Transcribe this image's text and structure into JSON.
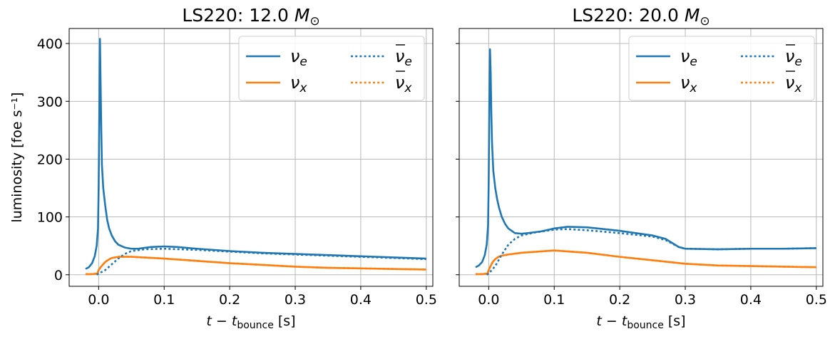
{
  "chart_data": [
    {
      "type": "line",
      "title": "LS220: 12.0 M⊙",
      "title_parts": {
        "prefix": "LS220: 12.0 ",
        "symbol": "M",
        "subscript": "⊙"
      },
      "xlabel_parts": {
        "pre": "t − t",
        "sub": "bounce",
        "post": " [s]"
      },
      "ylabel": "luminosity [foe s⁻¹]",
      "xlim": [
        -0.045,
        0.51
      ],
      "ylim": [
        -20,
        426
      ],
      "xticks": [
        0.0,
        0.1,
        0.2,
        0.3,
        0.4,
        0.5
      ],
      "xtick_labels": [
        "0.0",
        "0.1",
        "0.2",
        "0.3",
        "0.4",
        "0.5"
      ],
      "yticks": [
        0,
        100,
        200,
        300,
        400
      ],
      "ytick_labels": [
        "0",
        "100",
        "200",
        "300",
        "400"
      ],
      "grid": true,
      "legend_position": "top-right",
      "series": [
        {
          "name": "ν",
          "sub": "e",
          "bar": false,
          "color": "#1f77b4",
          "dash": "solid",
          "x": [
            -0.02,
            -0.015,
            -0.01,
            -0.006,
            -0.003,
            -0.001,
            0.0,
            0.001,
            0.002,
            0.003,
            0.004,
            0.005,
            0.007,
            0.01,
            0.013,
            0.016,
            0.02,
            0.025,
            0.03,
            0.04,
            0.05,
            0.06,
            0.08,
            0.1,
            0.12,
            0.15,
            0.2,
            0.25,
            0.3,
            0.35,
            0.4,
            0.45,
            0.5
          ],
          "y": [
            10,
            13,
            20,
            32,
            50,
            80,
            150,
            280,
            408,
            330,
            250,
            190,
            150,
            120,
            95,
            80,
            68,
            58,
            52,
            47,
            45,
            45,
            48,
            49,
            48,
            45,
            41,
            38,
            36,
            34,
            32,
            30,
            28
          ]
        },
        {
          "name": "ν",
          "sub": "x",
          "bar": false,
          "color": "#ff7f0e",
          "dash": "solid",
          "x": [
            -0.02,
            -0.01,
            -0.002,
            0.0,
            0.003,
            0.006,
            0.01,
            0.015,
            0.02,
            0.03,
            0.05,
            0.1,
            0.15,
            0.2,
            0.25,
            0.3,
            0.35,
            0.4,
            0.45,
            0.5
          ],
          "y": [
            1,
            1,
            2,
            8,
            13,
            17,
            22,
            26,
            29,
            31,
            31,
            28,
            24,
            20,
            17,
            14,
            12,
            11,
            10,
            9
          ]
        },
        {
          "name": "ν",
          "sub": "e",
          "bar": true,
          "color": "#1f77b4",
          "dash": "dotted",
          "x": [
            -0.003,
            0.0,
            0.01,
            0.02,
            0.03,
            0.04,
            0.05,
            0.07,
            0.1,
            0.15,
            0.2,
            0.25,
            0.3,
            0.35,
            0.4,
            0.45,
            0.5
          ],
          "y": [
            0,
            2,
            8,
            18,
            28,
            36,
            41,
            44,
            45,
            43,
            40,
            37,
            35,
            33,
            31,
            29,
            27
          ]
        },
        {
          "name": "ν",
          "sub": "x",
          "bar": true,
          "color": "#ff7f0e",
          "dash": "dotted",
          "x": [
            -0.02,
            -0.01,
            -0.002,
            0.0,
            0.003,
            0.006,
            0.01,
            0.015,
            0.02,
            0.03,
            0.05,
            0.1,
            0.15,
            0.2,
            0.25,
            0.3,
            0.35,
            0.4,
            0.45,
            0.5
          ],
          "y": [
            1,
            1,
            2,
            8,
            13,
            17,
            22,
            26,
            29,
            31,
            31,
            28,
            24,
            20,
            17,
            14,
            12,
            11,
            10,
            9
          ]
        }
      ]
    },
    {
      "type": "line",
      "title": "LS220: 20.0 M⊙",
      "title_parts": {
        "prefix": "LS220: 20.0 ",
        "symbol": "M",
        "subscript": "⊙"
      },
      "xlabel_parts": {
        "pre": "t − t",
        "sub": "bounce",
        "post": " [s]"
      },
      "ylabel": "",
      "xlim": [
        -0.045,
        0.51
      ],
      "ylim": [
        -20,
        426
      ],
      "xticks": [
        0.0,
        0.1,
        0.2,
        0.3,
        0.4,
        0.5
      ],
      "xtick_labels": [
        "0.0",
        "0.1",
        "0.2",
        "0.3",
        "0.4",
        "0.5"
      ],
      "yticks": [
        0,
        100,
        200,
        300,
        400
      ],
      "ytick_labels": [],
      "grid": true,
      "legend_position": "top-right",
      "series": [
        {
          "name": "ν",
          "sub": "e",
          "bar": false,
          "color": "#1f77b4",
          "dash": "solid",
          "x": [
            -0.02,
            -0.015,
            -0.01,
            -0.006,
            -0.003,
            -0.001,
            0.0,
            0.001,
            0.002,
            0.003,
            0.004,
            0.005,
            0.007,
            0.01,
            0.013,
            0.016,
            0.02,
            0.025,
            0.03,
            0.04,
            0.05,
            0.06,
            0.08,
            0.1,
            0.12,
            0.15,
            0.2,
            0.25,
            0.27,
            0.28,
            0.29,
            0.3,
            0.35,
            0.4,
            0.45,
            0.5
          ],
          "y": [
            13,
            16,
            22,
            34,
            52,
            85,
            160,
            300,
            390,
            350,
            280,
            230,
            180,
            150,
            130,
            115,
            100,
            88,
            80,
            72,
            71,
            72,
            75,
            80,
            83,
            82,
            76,
            68,
            62,
            55,
            48,
            45,
            44,
            45,
            45,
            46
          ]
        },
        {
          "name": "ν",
          "sub": "x",
          "bar": false,
          "color": "#ff7f0e",
          "dash": "solid",
          "x": [
            -0.02,
            -0.01,
            -0.002,
            0.0,
            0.003,
            0.006,
            0.01,
            0.015,
            0.02,
            0.03,
            0.05,
            0.1,
            0.15,
            0.2,
            0.25,
            0.3,
            0.35,
            0.4,
            0.45,
            0.5
          ],
          "y": [
            1,
            1,
            2,
            8,
            15,
            22,
            27,
            31,
            33,
            35,
            38,
            42,
            38,
            31,
            25,
            19,
            16,
            15,
            14,
            13
          ]
        },
        {
          "name": "ν",
          "sub": "e",
          "bar": true,
          "color": "#1f77b4",
          "dash": "dotted",
          "x": [
            -0.003,
            0.0,
            0.01,
            0.02,
            0.03,
            0.04,
            0.05,
            0.07,
            0.1,
            0.12,
            0.15,
            0.2,
            0.25,
            0.27,
            0.28,
            0.29,
            0.3,
            0.35,
            0.4,
            0.45,
            0.5
          ],
          "y": [
            0,
            2,
            15,
            35,
            52,
            62,
            68,
            73,
            78,
            79,
            77,
            72,
            66,
            60,
            54,
            48,
            45,
            44,
            45,
            45,
            46
          ]
        },
        {
          "name": "ν",
          "sub": "x",
          "bar": true,
          "color": "#ff7f0e",
          "dash": "dotted",
          "x": [
            -0.02,
            -0.01,
            -0.002,
            0.0,
            0.003,
            0.006,
            0.01,
            0.015,
            0.02,
            0.03,
            0.05,
            0.1,
            0.15,
            0.2,
            0.25,
            0.3,
            0.35,
            0.4,
            0.45,
            0.5
          ],
          "y": [
            1,
            1,
            2,
            8,
            15,
            22,
            27,
            31,
            33,
            35,
            38,
            42,
            38,
            31,
            25,
            19,
            16,
            15,
            14,
            13
          ]
        }
      ]
    }
  ]
}
